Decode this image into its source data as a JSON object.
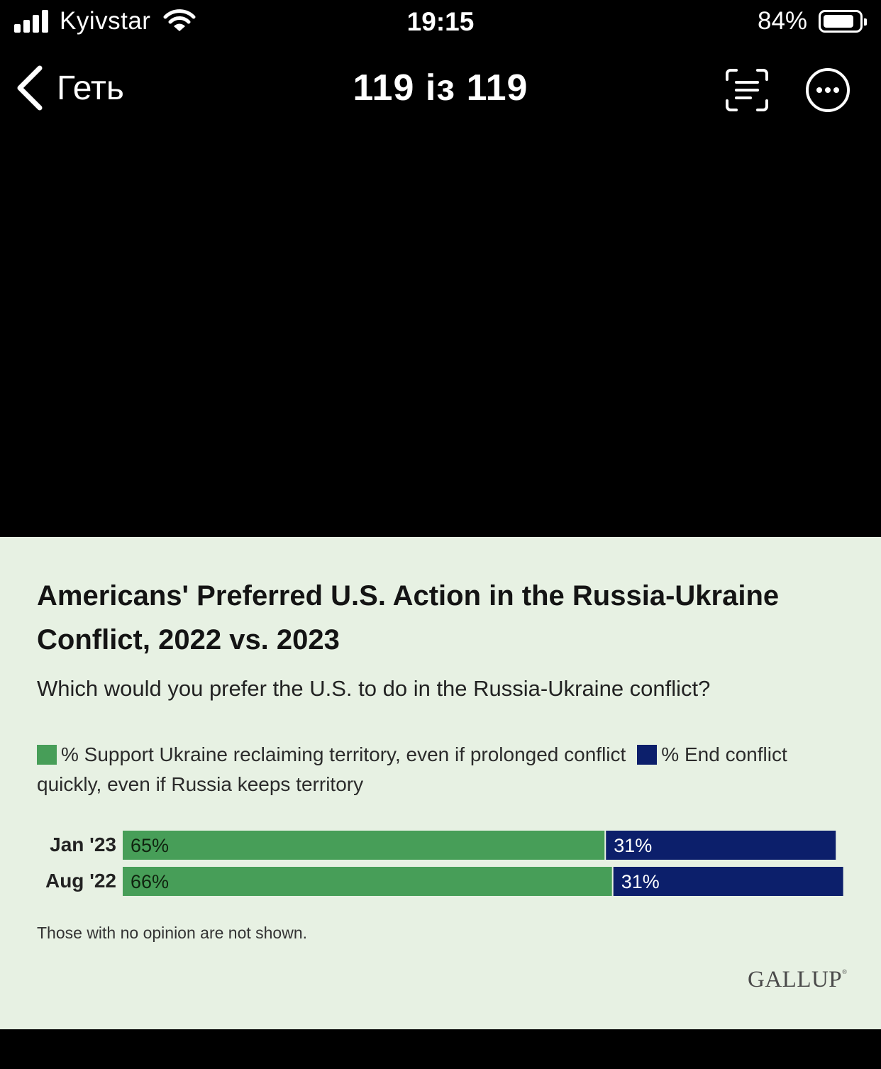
{
  "status_bar": {
    "carrier": "Kyivstar",
    "time": "19:15",
    "battery_percent": "84%",
    "battery_level": 0.84,
    "signal_bars": 4
  },
  "nav": {
    "back_label": "Геть",
    "title": "119 із 119",
    "icons": [
      "chevron-left-icon",
      "live-text-scan-icon",
      "more-options-icon"
    ]
  },
  "card": {
    "title": "Americans' Preferred U.S. Action in the Russia-Ukraine Conflict, 2022 vs. 2023",
    "question": "Which would you prefer the U.S. to do in the Russia-Ukraine conflict?",
    "legend": [
      {
        "label": "% Support Ukraine reclaiming territory, even if prolonged conflict",
        "color": "#479e58"
      },
      {
        "label": "% End conflict quickly, even if Russia keeps territory",
        "color": "#0c1f6b"
      }
    ],
    "note": "Those with no opinion are not shown.",
    "logo": "GALLUP"
  },
  "chart_data": {
    "type": "bar",
    "orientation": "horizontal",
    "stacked": true,
    "categories": [
      "Jan '23",
      "Aug '22"
    ],
    "series": [
      {
        "name": "% Support Ukraine reclaiming territory, even if prolonged conflict",
        "values": [
          65,
          66
        ],
        "labels": [
          "65%",
          "66%"
        ],
        "color": "#479e58"
      },
      {
        "name": "% End conflict quickly, even if Russia keeps territory",
        "values": [
          31,
          31
        ],
        "labels": [
          "31%",
          "31%"
        ],
        "color": "#0c1f6b"
      }
    ],
    "title": "Americans' Preferred U.S. Action in the Russia-Ukraine Conflict, 2022 vs. 2023",
    "xlim": [
      0,
      100
    ]
  }
}
